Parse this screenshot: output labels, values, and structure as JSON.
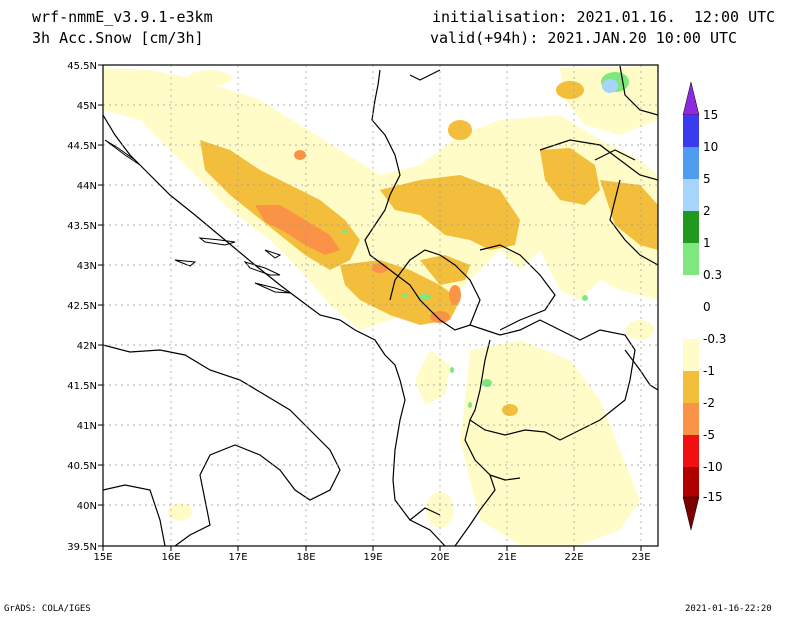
{
  "header": {
    "model": "wrf-nmmE_v3.9.1-e3km",
    "field": "3h Acc.Snow [cm/3h]",
    "init": "initialisation: 2021.01.16.  12:00 UTC",
    "valid": "valid(+94h): 2021.JAN.20 10:00 UTC"
  },
  "axes": {
    "lat_labels": [
      "45.5N",
      "45N",
      "44.5N",
      "44N",
      "43.5N",
      "43N",
      "42.5N",
      "42N",
      "41.5N",
      "41N",
      "40.5N",
      "40N",
      "39.5N"
    ],
    "lon_labels": [
      "15E",
      "16E",
      "17E",
      "18E",
      "19E",
      "20E",
      "21E",
      "22E",
      "23E"
    ]
  },
  "colorbar": {
    "labels": [
      "15",
      "10",
      "5",
      "2",
      "1",
      "0.3",
      "0",
      "-0.3",
      "-1",
      "-2",
      "-5",
      "-10",
      "-15"
    ],
    "colors": [
      "#8a2be2",
      "#3a3af0",
      "#4f9cf0",
      "#a6d4fa",
      "#1f9a1f",
      "#7ee87e",
      "#ffffff",
      "#fffcc8",
      "#f2be3c",
      "#fb9346",
      "#f01010",
      "#b00000",
      "#7a0000"
    ]
  },
  "footer": {
    "left": "GrADS: COLA/IGES",
    "right": "2021-01-16-22:20"
  }
}
